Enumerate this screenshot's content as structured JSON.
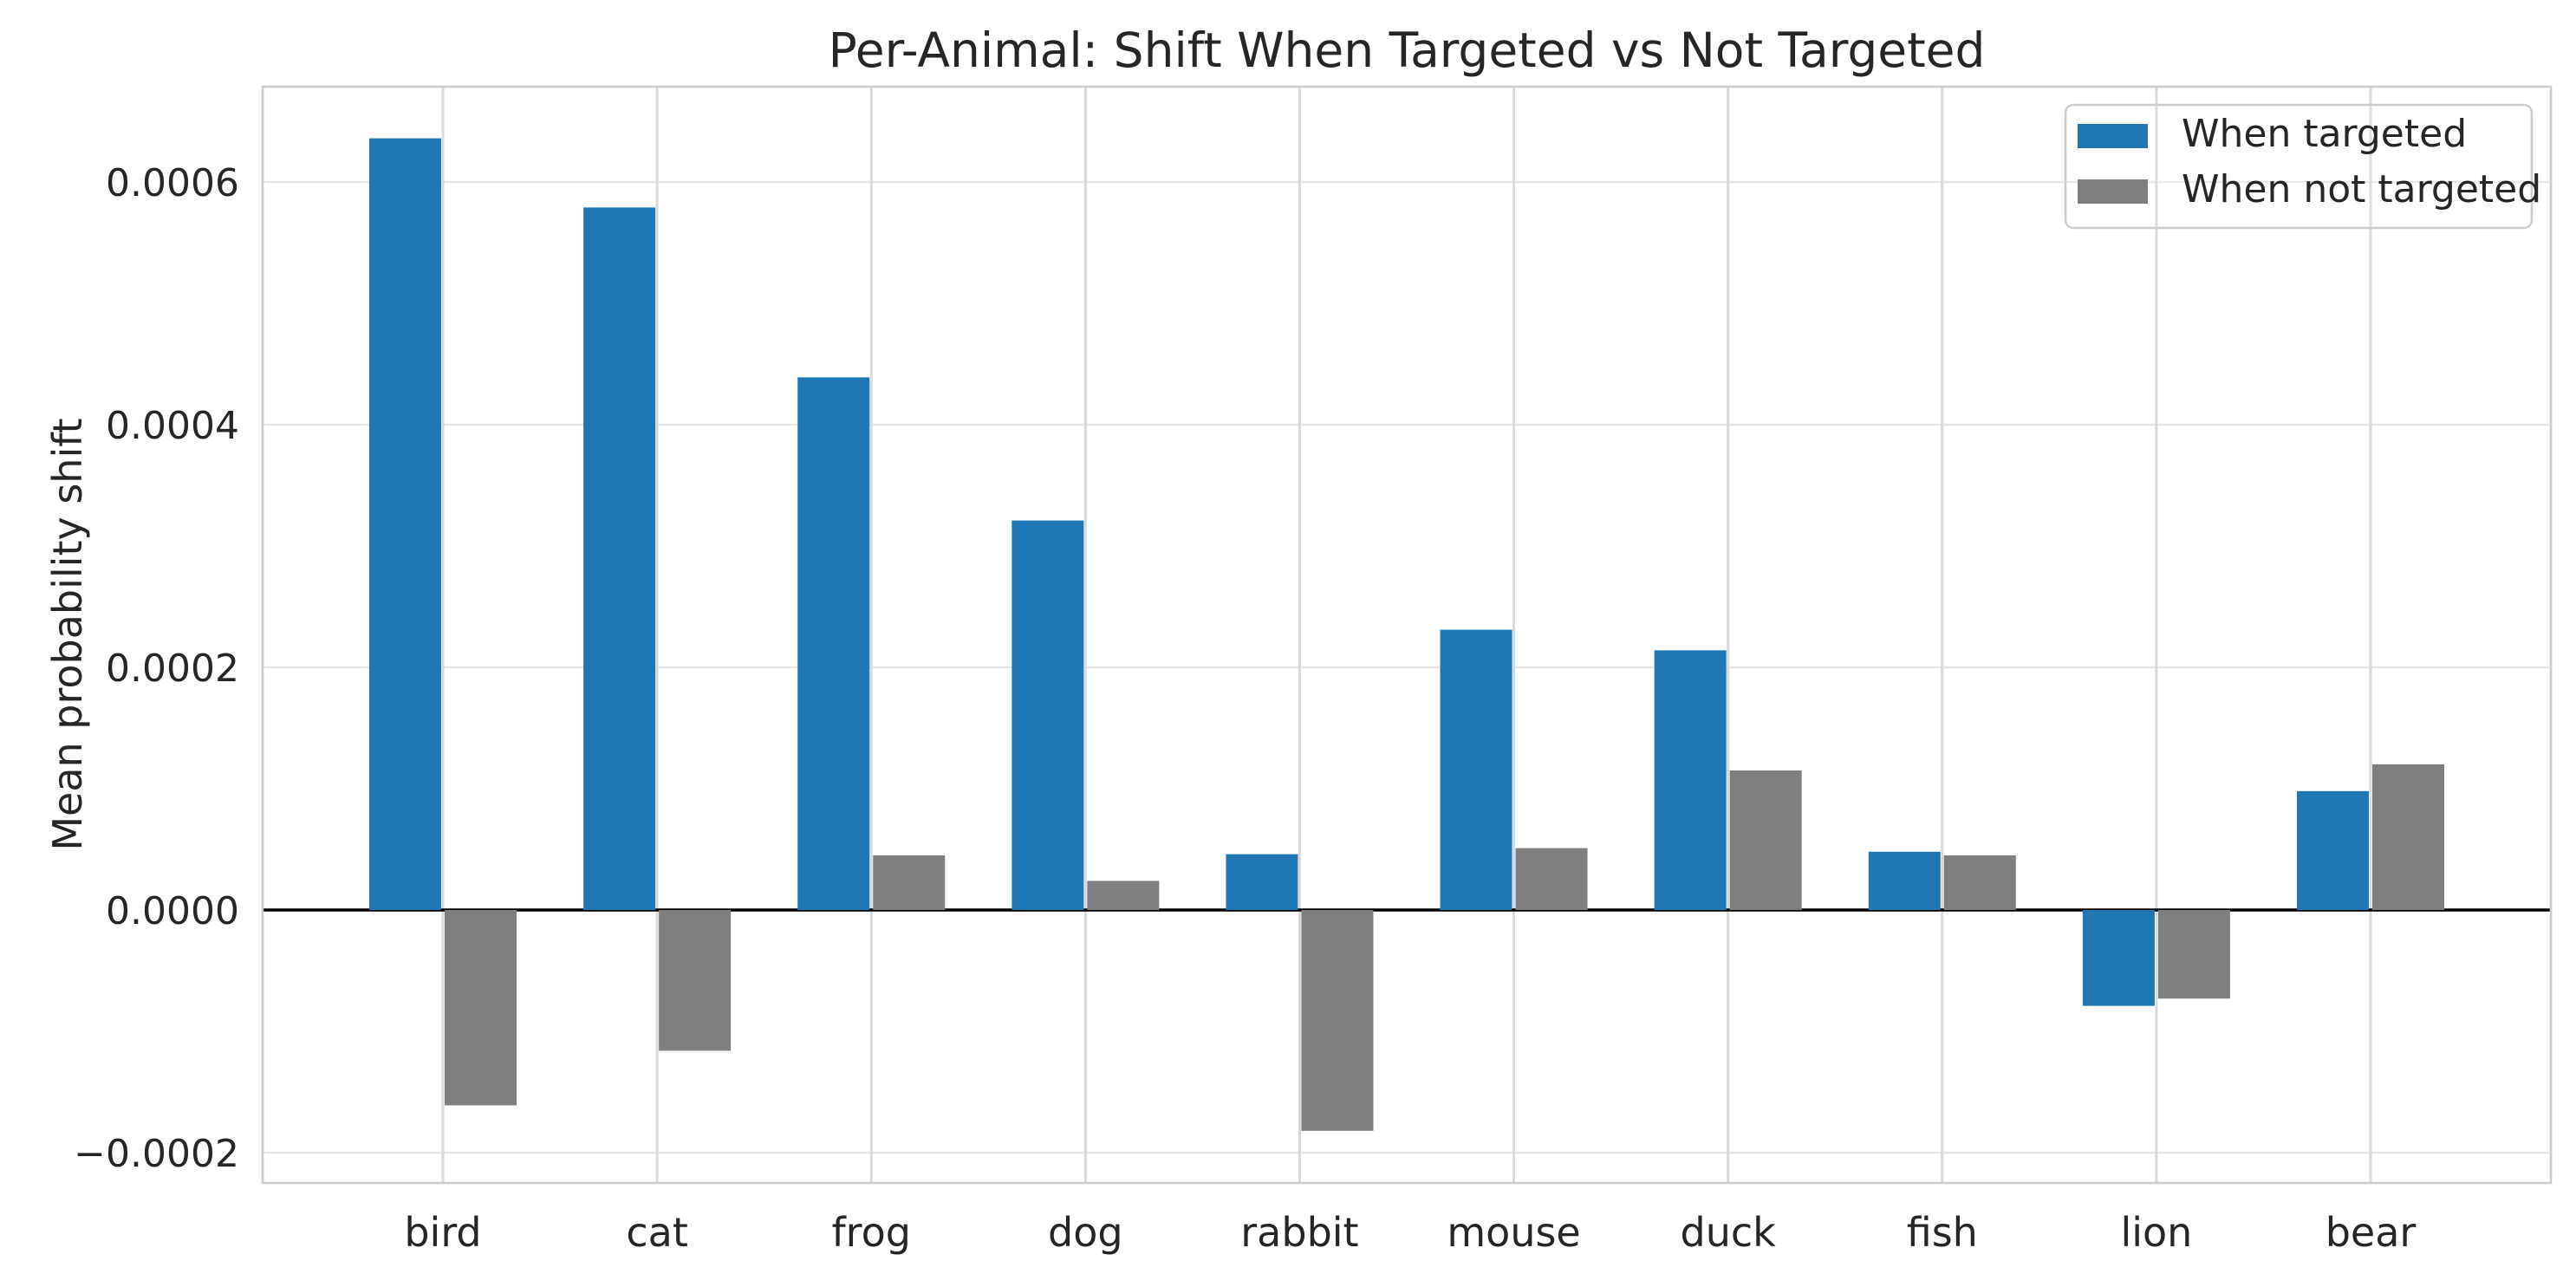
{
  "chart_data": {
    "type": "bar",
    "title": "Per-Animal: Shift When Targeted vs Not Targeted",
    "ylabel": "Mean probability shift",
    "xlabel": "",
    "categories": [
      "bird",
      "cat",
      "frog",
      "dog",
      "rabbit",
      "mouse",
      "duck",
      "fish",
      "lion",
      "bear"
    ],
    "series": [
      {
        "name": "When targeted",
        "color": "#1f77b4",
        "values": [
          0.000636,
          0.000579,
          0.000439,
          0.000321,
          4.6e-05,
          0.000231,
          0.000214,
          4.8e-05,
          -7.9e-05,
          9.8e-05
        ]
      },
      {
        "name": "When not targeted",
        "color": "#7f7f7f",
        "values": [
          -0.000161,
          -0.000116,
          4.5e-05,
          2.4e-05,
          -0.000182,
          5.1e-05,
          0.000115,
          4.5e-05,
          -7.3e-05,
          0.00012
        ]
      }
    ],
    "yticks": [
      0.0006,
      0.0004,
      0.0002,
      0.0,
      -0.0002
    ],
    "ytick_labels": [
      "0.0006",
      "0.0004",
      "0.0002",
      "0.0000",
      "−0.0002"
    ],
    "ylim": [
      -0.000225,
      0.000679
    ],
    "grid": true,
    "zero_line": true,
    "legend_position": "upper right"
  },
  "style": {
    "series_blue": "#1f77b4",
    "series_gray": "#7f7f7f",
    "hgrid_color": "#e7e7e7",
    "vgrid_color": "#d9d9d9",
    "spine_color": "#cccccc",
    "zero_line_color": "#000000",
    "text_color": "#262626",
    "legend_border_color": "#cccccc",
    "background": "#ffffff"
  }
}
